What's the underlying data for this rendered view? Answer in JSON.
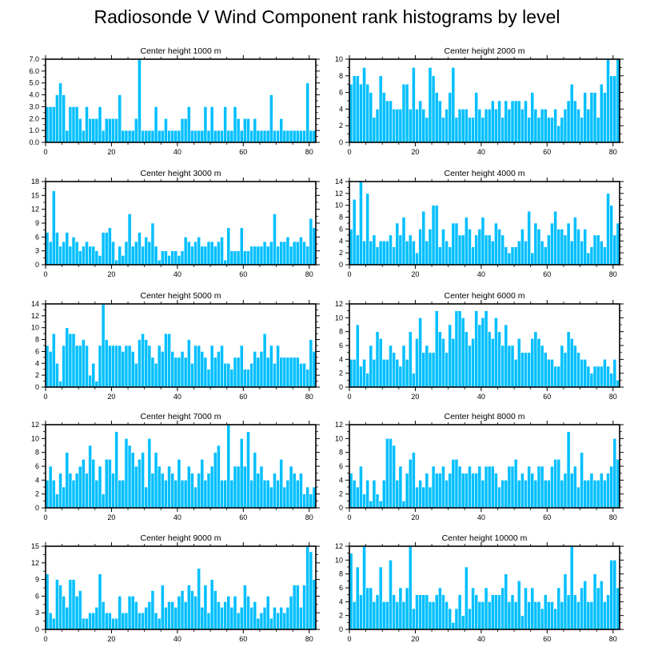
{
  "title": "Radiosonde V Wind Component rank histograms by level",
  "bar_color": "#00BFFF",
  "bar_edge_color": "#FFFFFF",
  "chart_data": [
    {
      "type": "bar",
      "title": "Center height 1000 m",
      "xlim": [
        0,
        82
      ],
      "ylim": [
        0,
        7
      ],
      "xticks": [
        0,
        20,
        40,
        60,
        80
      ],
      "yticks": [
        0,
        1,
        2,
        3,
        4,
        5,
        6,
        7
      ],
      "ytick_labels": [
        "0.0",
        "1.0",
        "2.0",
        "3.0",
        "4.0",
        "5.0",
        "6.0",
        "7.0"
      ],
      "values": [
        3,
        3,
        3,
        4,
        5,
        4,
        1,
        3,
        3,
        3,
        2,
        1,
        3,
        2,
        2,
        2,
        3,
        1,
        2,
        2,
        2,
        2,
        4,
        1,
        1,
        1,
        1,
        2,
        7,
        1,
        1,
        1,
        1,
        3,
        1,
        1,
        2,
        1,
        1,
        1,
        1,
        2,
        2,
        3,
        1,
        1,
        1,
        1,
        3,
        1,
        3,
        1,
        1,
        1,
        3,
        1,
        1,
        3,
        2,
        1,
        2,
        2,
        1,
        2,
        1,
        1,
        1,
        1,
        4,
        1,
        1,
        2,
        1,
        1,
        1,
        1,
        1,
        1,
        1,
        5,
        1,
        1
      ]
    },
    {
      "type": "bar",
      "title": "Center height 2000 m",
      "xlim": [
        0,
        82
      ],
      "ylim": [
        0,
        10
      ],
      "xticks": [
        0,
        20,
        40,
        60,
        80
      ],
      "yticks": [
        0,
        2,
        4,
        6,
        8,
        10
      ],
      "ytick_labels": [
        "0",
        "2",
        "4",
        "6",
        "8",
        "10"
      ],
      "values": [
        7,
        8,
        8,
        7,
        9,
        7,
        6,
        3,
        4,
        8,
        6,
        5,
        5,
        4,
        4,
        4,
        7,
        7,
        4,
        9,
        4,
        5,
        4,
        3,
        9,
        8,
        6,
        5,
        3,
        4,
        6,
        9,
        3,
        4,
        4,
        4,
        3,
        3,
        6,
        4,
        3,
        4,
        4,
        5,
        4,
        5,
        3,
        5,
        4,
        5,
        5,
        5,
        4,
        5,
        3,
        6,
        4,
        3,
        4,
        4,
        3,
        3,
        4,
        2,
        3,
        4,
        5,
        7,
        5,
        4,
        3,
        6,
        4,
        6,
        6,
        3,
        7,
        6,
        10,
        8,
        8,
        10
      ]
    },
    {
      "type": "bar",
      "title": "Center height 3000 m",
      "xlim": [
        0,
        82
      ],
      "ylim": [
        0,
        18
      ],
      "xticks": [
        0,
        20,
        40,
        60,
        80
      ],
      "yticks": [
        0,
        3,
        6,
        9,
        12,
        15,
        18
      ],
      "ytick_labels": [
        "0",
        "3",
        "6",
        "9",
        "12",
        "15",
        "18"
      ],
      "values": [
        7,
        5,
        16,
        7,
        4,
        5,
        7,
        4,
        6,
        5,
        3,
        4,
        5,
        4,
        4,
        3,
        2,
        7,
        7,
        8,
        5,
        1,
        4,
        2,
        5,
        11,
        4,
        5,
        7,
        4,
        6,
        5,
        9,
        4,
        1,
        3,
        3,
        2,
        3,
        3,
        2,
        3,
        6,
        5,
        4,
        5,
        6,
        4,
        4,
        5,
        5,
        4,
        5,
        6,
        1,
        8,
        3,
        3,
        3,
        8,
        3,
        3,
        4,
        4,
        4,
        4,
        5,
        4,
        5,
        11,
        4,
        5,
        5,
        6,
        4,
        5,
        5,
        6,
        5,
        4,
        10,
        8
      ]
    },
    {
      "type": "bar",
      "title": "Center height 4000 m",
      "xlim": [
        0,
        82
      ],
      "ylim": [
        0,
        14
      ],
      "xticks": [
        0,
        20,
        40,
        60,
        80
      ],
      "yticks": [
        0,
        2,
        4,
        6,
        8,
        10,
        12,
        14
      ],
      "ytick_labels": [
        "0",
        "2",
        "4",
        "6",
        "8",
        "10",
        "12",
        "14"
      ],
      "values": [
        6,
        11,
        5,
        14,
        4,
        12,
        4,
        5,
        3,
        4,
        4,
        4,
        5,
        3,
        7,
        5,
        8,
        4,
        5,
        4,
        2,
        6,
        9,
        4,
        6,
        10,
        10,
        3,
        6,
        4,
        3,
        7,
        7,
        5,
        5,
        8,
        6,
        3,
        5,
        6,
        8,
        5,
        5,
        4,
        7,
        6,
        5,
        3,
        2,
        3,
        3,
        4,
        6,
        4,
        9,
        2,
        7,
        6,
        4,
        3,
        5,
        7,
        9,
        6,
        6,
        5,
        7,
        4,
        8,
        6,
        4,
        6,
        2,
        3,
        5,
        5,
        4,
        3,
        12,
        10,
        5,
        7
      ]
    },
    {
      "type": "bar",
      "title": "Center height 5000 m",
      "xlim": [
        0,
        82
      ],
      "ylim": [
        0,
        14
      ],
      "xticks": [
        0,
        20,
        40,
        60,
        80
      ],
      "yticks": [
        0,
        2,
        4,
        6,
        8,
        10,
        12,
        14
      ],
      "ytick_labels": [
        "0",
        "2",
        "4",
        "6",
        "8",
        "10",
        "12",
        "14"
      ],
      "values": [
        7,
        6,
        9,
        4,
        1,
        7,
        10,
        9,
        9,
        7,
        7,
        8,
        7,
        2,
        4,
        1,
        7,
        14,
        8,
        7,
        7,
        7,
        7,
        6,
        7,
        7,
        6,
        4,
        8,
        9,
        8,
        7,
        5,
        4,
        7,
        6,
        9,
        9,
        6,
        5,
        5,
        6,
        5,
        8,
        4,
        7,
        7,
        6,
        5,
        3,
        7,
        5,
        6,
        7,
        4,
        4,
        3,
        5,
        5,
        7,
        3,
        3,
        4,
        6,
        5,
        6,
        9,
        5,
        7,
        4,
        7,
        5,
        5,
        5,
        5,
        5,
        5,
        4,
        4,
        3,
        8,
        6
      ]
    },
    {
      "type": "bar",
      "title": "Center height 6000 m",
      "xlim": [
        0,
        82
      ],
      "ylim": [
        0,
        12
      ],
      "xticks": [
        0,
        20,
        40,
        60,
        80
      ],
      "yticks": [
        0,
        2,
        4,
        6,
        8,
        10,
        12
      ],
      "ytick_labels": [
        "0",
        "2",
        "4",
        "6",
        "8",
        "10",
        "12"
      ],
      "values": [
        4,
        4,
        9,
        3,
        4,
        2,
        6,
        4,
        8,
        7,
        4,
        4,
        6,
        5,
        4,
        3,
        6,
        4,
        8,
        2,
        7,
        10,
        5,
        6,
        5,
        5,
        11,
        8,
        7,
        5,
        9,
        7,
        11,
        11,
        10,
        8,
        6,
        7,
        11,
        9,
        10,
        11,
        8,
        7,
        10,
        8,
        6,
        9,
        6,
        6,
        4,
        7,
        5,
        5,
        5,
        7,
        8,
        7,
        6,
        5,
        4,
        4,
        3,
        3,
        6,
        5,
        8,
        7,
        6,
        5,
        4,
        4,
        3,
        2,
        3,
        3,
        3,
        4,
        3,
        2,
        4,
        1
      ]
    },
    {
      "type": "bar",
      "title": "Center height 7000 m",
      "xlim": [
        0,
        82
      ],
      "ylim": [
        0,
        12
      ],
      "xticks": [
        0,
        20,
        40,
        60,
        80
      ],
      "yticks": [
        0,
        2,
        4,
        6,
        8,
        10,
        12
      ],
      "ytick_labels": [
        "0",
        "2",
        "4",
        "6",
        "8",
        "10",
        "12"
      ],
      "values": [
        4,
        6,
        4,
        2,
        5,
        3,
        8,
        5,
        4,
        5,
        6,
        7,
        5,
        9,
        7,
        4,
        6,
        2,
        7,
        7,
        5,
        11,
        4,
        4,
        10,
        9,
        8,
        6,
        7,
        8,
        3,
        10,
        5,
        8,
        6,
        5,
        4,
        6,
        5,
        4,
        7,
        4,
        4,
        6,
        5,
        3,
        5,
        7,
        4,
        5,
        6,
        8,
        9,
        4,
        4,
        12,
        4,
        6,
        6,
        10,
        6,
        11,
        4,
        8,
        5,
        6,
        4,
        4,
        3,
        5,
        4,
        7,
        3,
        4,
        6,
        5,
        4,
        5,
        2,
        3,
        2,
        3
      ]
    },
    {
      "type": "bar",
      "title": "Center height 8000 m",
      "xlim": [
        0,
        82
      ],
      "ylim": [
        0,
        12
      ],
      "xticks": [
        0,
        20,
        40,
        60,
        80
      ],
      "yticks": [
        0,
        2,
        4,
        6,
        8,
        10,
        12
      ],
      "ytick_labels": [
        "0",
        "2",
        "4",
        "6",
        "8",
        "10",
        "12"
      ],
      "values": [
        5,
        4,
        3,
        6,
        2,
        4,
        1,
        4,
        2,
        1,
        4,
        10,
        10,
        9,
        4,
        6,
        1,
        5,
        7,
        8,
        3,
        4,
        3,
        5,
        3,
        6,
        5,
        5,
        6,
        4,
        5,
        7,
        7,
        6,
        5,
        5,
        6,
        5,
        5,
        6,
        4,
        6,
        6,
        6,
        5,
        3,
        4,
        4,
        6,
        6,
        7,
        4,
        5,
        4,
        6,
        5,
        4,
        6,
        6,
        4,
        4,
        6,
        7,
        7,
        4,
        5,
        11,
        5,
        6,
        3,
        8,
        4,
        4,
        5,
        4,
        4,
        5,
        4,
        5,
        6,
        10,
        7
      ]
    },
    {
      "type": "bar",
      "title": "Center height 9000 m",
      "xlim": [
        0,
        82
      ],
      "ylim": [
        0,
        15
      ],
      "xticks": [
        0,
        20,
        40,
        60,
        80
      ],
      "yticks": [
        0,
        3,
        6,
        9,
        12,
        15
      ],
      "ytick_labels": [
        "0",
        "3",
        "6",
        "9",
        "12",
        "15"
      ],
      "values": [
        10,
        3,
        2,
        9,
        8,
        6,
        4,
        9,
        9,
        6,
        7,
        2,
        2,
        3,
        3,
        4,
        10,
        5,
        3,
        3,
        2,
        2,
        6,
        3,
        3,
        6,
        6,
        5,
        3,
        3,
        4,
        5,
        7,
        3,
        2,
        8,
        4,
        5,
        5,
        4,
        6,
        7,
        5,
        8,
        7,
        6,
        11,
        4,
        8,
        3,
        9,
        7,
        5,
        4,
        5,
        6,
        4,
        6,
        3,
        4,
        8,
        6,
        4,
        5,
        2,
        3,
        4,
        6,
        2,
        4,
        3,
        4,
        3,
        4,
        6,
        8,
        8,
        4,
        8,
        15,
        14,
        9
      ]
    },
    {
      "type": "bar",
      "title": "Center height 10000 m",
      "xlim": [
        0,
        82
      ],
      "ylim": [
        0,
        12
      ],
      "xticks": [
        0,
        20,
        40,
        60,
        80
      ],
      "yticks": [
        0,
        2,
        4,
        6,
        8,
        10,
        12
      ],
      "ytick_labels": [
        "0",
        "2",
        "4",
        "6",
        "8",
        "10",
        "12"
      ],
      "values": [
        11,
        4,
        9,
        5,
        12,
        6,
        6,
        4,
        5,
        9,
        4,
        4,
        10,
        5,
        4,
        6,
        4,
        6,
        12,
        3,
        5,
        5,
        5,
        5,
        4,
        4,
        5,
        6,
        5,
        4,
        3,
        1,
        3,
        5,
        2,
        9,
        3,
        6,
        5,
        4,
        4,
        6,
        4,
        5,
        5,
        5,
        6,
        8,
        4,
        5,
        4,
        7,
        2,
        6,
        4,
        6,
        4,
        4,
        3,
        5,
        4,
        4,
        3,
        6,
        4,
        8,
        5,
        12,
        5,
        4,
        6,
        7,
        4,
        4,
        8,
        6,
        7,
        4,
        5,
        10,
        10,
        6
      ]
    }
  ]
}
